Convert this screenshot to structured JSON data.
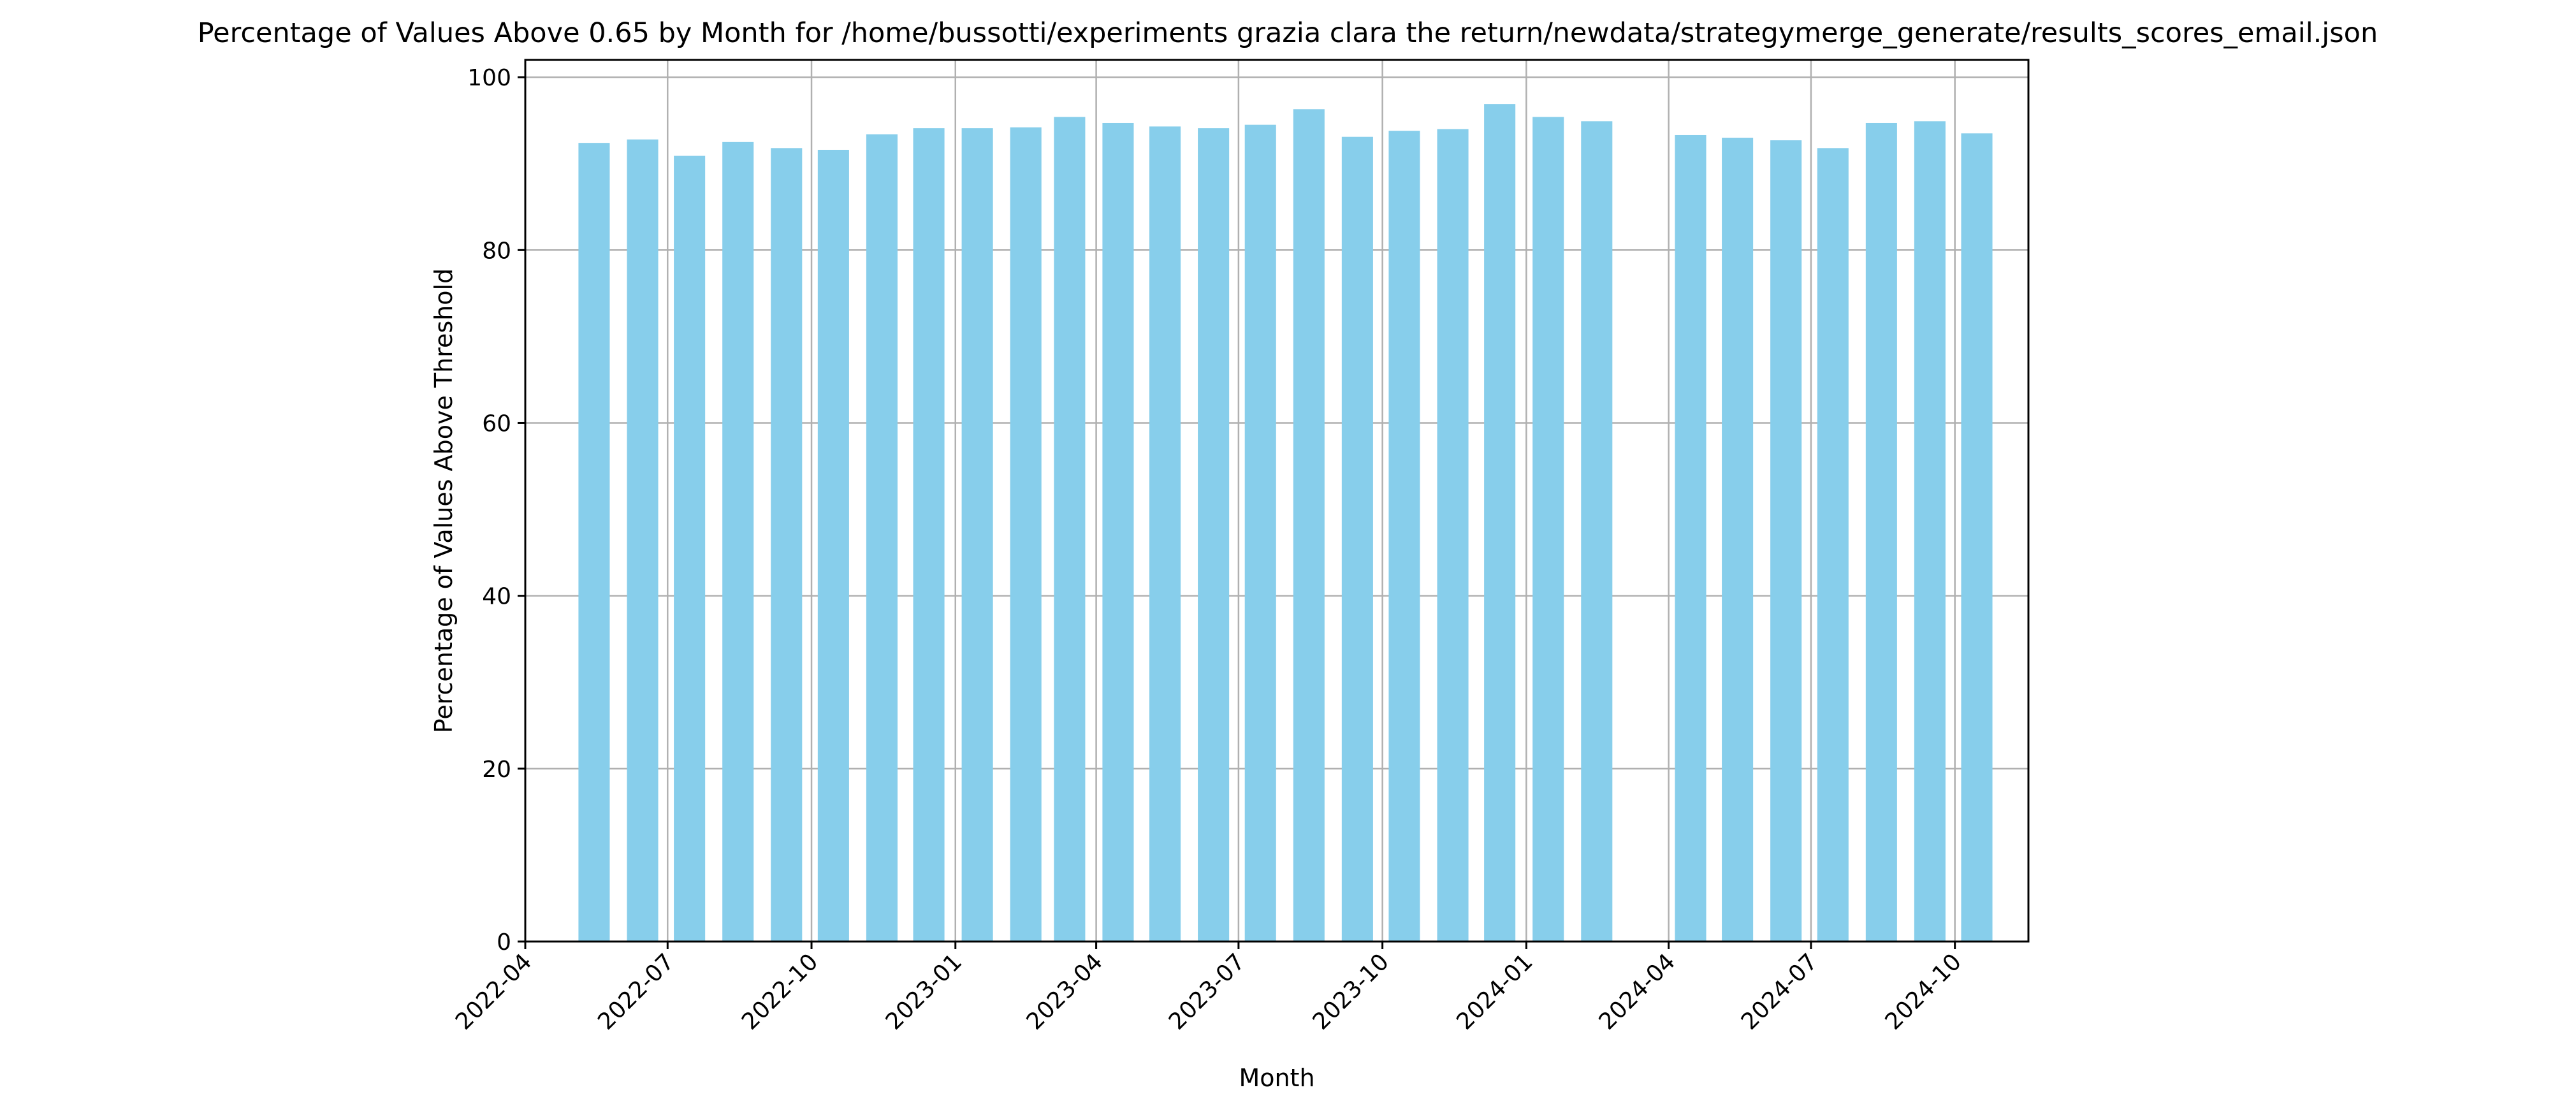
{
  "chart_data": {
    "type": "bar",
    "title": "Percentage of Values Above 0.65 by Month for /home/bussotti/experiments grazia clara the return/newdata/strategymerge_generate/results_scores_email.json",
    "xlabel": "Month",
    "ylabel": "Percentage of Values Above Threshold",
    "ylim": [
      0,
      102
    ],
    "xlim": [
      "2022-04-01",
      "2024-11-17"
    ],
    "grid": true,
    "bar_color": "#87ceeb",
    "x_ticks": [
      "2022-04",
      "2022-07",
      "2022-10",
      "2023-01",
      "2023-04",
      "2023-07",
      "2023-10",
      "2024-01",
      "2024-04",
      "2024-07",
      "2024-10"
    ],
    "y_ticks": [
      0,
      20,
      40,
      60,
      80,
      100
    ],
    "categories": [
      "2022-05",
      "2022-06",
      "2022-07",
      "2022-08",
      "2022-09",
      "2022-10",
      "2022-11",
      "2022-12",
      "2023-01",
      "2023-02",
      "2023-03",
      "2023-04",
      "2023-05",
      "2023-06",
      "2023-07",
      "2023-08",
      "2023-09",
      "2023-10",
      "2023-11",
      "2023-12",
      "2024-01",
      "2024-02",
      "2024-04",
      "2024-05",
      "2024-06",
      "2024-07",
      "2024-08",
      "2024-09",
      "2024-10"
    ],
    "values": [
      92.4,
      92.8,
      90.9,
      92.5,
      91.8,
      91.6,
      93.4,
      94.1,
      94.1,
      94.2,
      95.4,
      94.7,
      94.3,
      94.1,
      94.5,
      96.3,
      93.1,
      93.8,
      94.0,
      96.9,
      95.4,
      94.9,
      93.3,
      93.0,
      92.7,
      91.8,
      94.7,
      94.9,
      93.5
    ]
  }
}
